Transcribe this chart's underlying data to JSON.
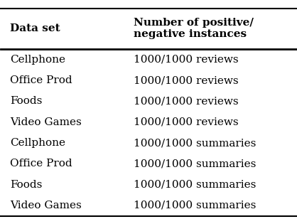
{
  "col1_header": "Data set",
  "col2_header": "Number of positive/\nnegative instances",
  "rows": [
    [
      "Cellphone",
      "1000/1000 reviews"
    ],
    [
      "Office Prod",
      "1000/1000 reviews"
    ],
    [
      "Foods",
      "1000/1000 reviews"
    ],
    [
      "Video Games",
      "1000/1000 reviews"
    ],
    [
      "Cellphone",
      "1000/1000 summaries"
    ],
    [
      "Office Prod",
      "1000/1000 summaries"
    ],
    [
      "Foods",
      "1000/1000 summaries"
    ],
    [
      "Video Games",
      "1000/1000 summaries"
    ]
  ],
  "background_color": "#ffffff",
  "header_fontsize": 11,
  "body_fontsize": 11,
  "font_family": "serif"
}
